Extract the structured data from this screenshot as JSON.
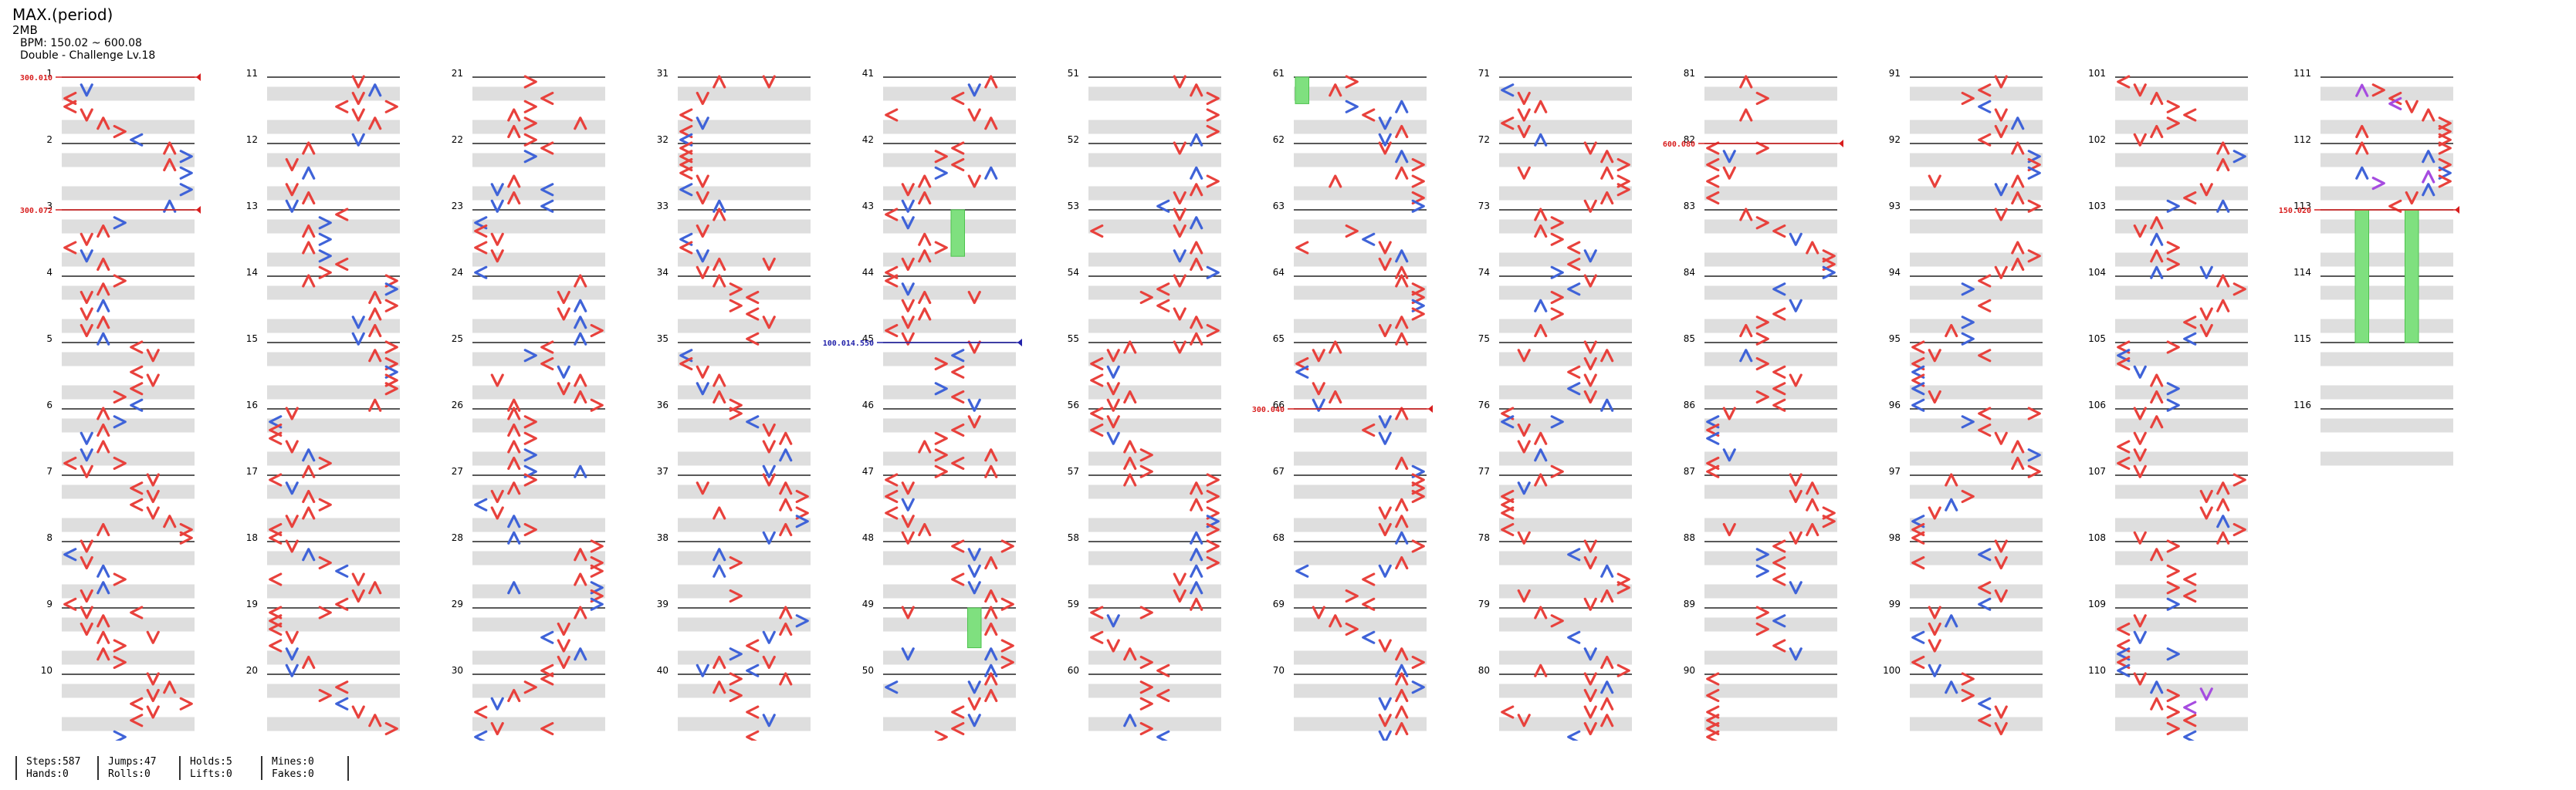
{
  "header": {
    "title": "MAX.(period)",
    "artist": "2MB",
    "bpm": "BPM: 150.02 ~ 600.08",
    "difficulty": "Double - Challenge Lv.18"
  },
  "colors": {
    "red_note": "#e8413c",
    "blue_note": "#3f63d8",
    "purple_note": "#a64ce0",
    "hold": "#7fe07f",
    "band": "#dedede",
    "measure_line": "#222222",
    "bpm_red": "#d81e1e",
    "bpm_blue": "#2222aa"
  },
  "measures": [
    "1",
    "2",
    "3",
    "4",
    "5",
    "6",
    "7",
    "8",
    "9",
    "10",
    "11",
    "12",
    "13",
    "14",
    "15",
    "16",
    "17",
    "18",
    "19",
    "20",
    "21",
    "22",
    "23",
    "24",
    "25",
    "26",
    "27",
    "28",
    "29",
    "30",
    "31",
    "32",
    "33",
    "34",
    "35",
    "36",
    "37",
    "38",
    "39",
    "40",
    "41",
    "42",
    "43",
    "44",
    "45",
    "46",
    "47",
    "48",
    "49",
    "50",
    "51",
    "52",
    "53",
    "54",
    "55",
    "56",
    "57",
    "58",
    "59",
    "60",
    "61",
    "62",
    "63",
    "64",
    "65",
    "66",
    "67",
    "68",
    "69",
    "70",
    "71",
    "72",
    "73",
    "74",
    "75",
    "76",
    "77",
    "78",
    "79",
    "80",
    "81",
    "82",
    "83",
    "84",
    "85",
    "86",
    "87",
    "88",
    "89",
    "90",
    "91",
    "92",
    "93",
    "94",
    "95",
    "96",
    "97",
    "98",
    "99",
    "100",
    "101",
    "102",
    "103",
    "104",
    "105",
    "106",
    "107",
    "108",
    "109",
    "110",
    "111",
    "112",
    "113",
    "114",
    "115",
    "116"
  ],
  "bpm_changes": [
    {
      "measure": 1,
      "offset": 0.0,
      "value": "300.010",
      "color": "red"
    },
    {
      "measure": 3,
      "offset": 0.0,
      "value": "300.072",
      "color": "red"
    },
    {
      "measure": 45,
      "offset": 0.0,
      "value": "100.014.550",
      "color": "blue"
    },
    {
      "measure": 66,
      "offset": 0.0,
      "value": "300.040",
      "color": "red"
    },
    {
      "measure": 82,
      "offset": 0.0,
      "value": "600.080",
      "color": "red"
    },
    {
      "measure": 113,
      "offset": 0.0,
      "value": "150.020",
      "color": "red"
    }
  ],
  "stats": [
    [
      "Steps:587",
      "Hands:0"
    ],
    [
      "Jumps:47",
      "Rolls:0"
    ],
    [
      "Holds:5",
      "Lifts:0"
    ],
    [
      "Mines:0",
      "Fakes:0"
    ]
  ]
}
